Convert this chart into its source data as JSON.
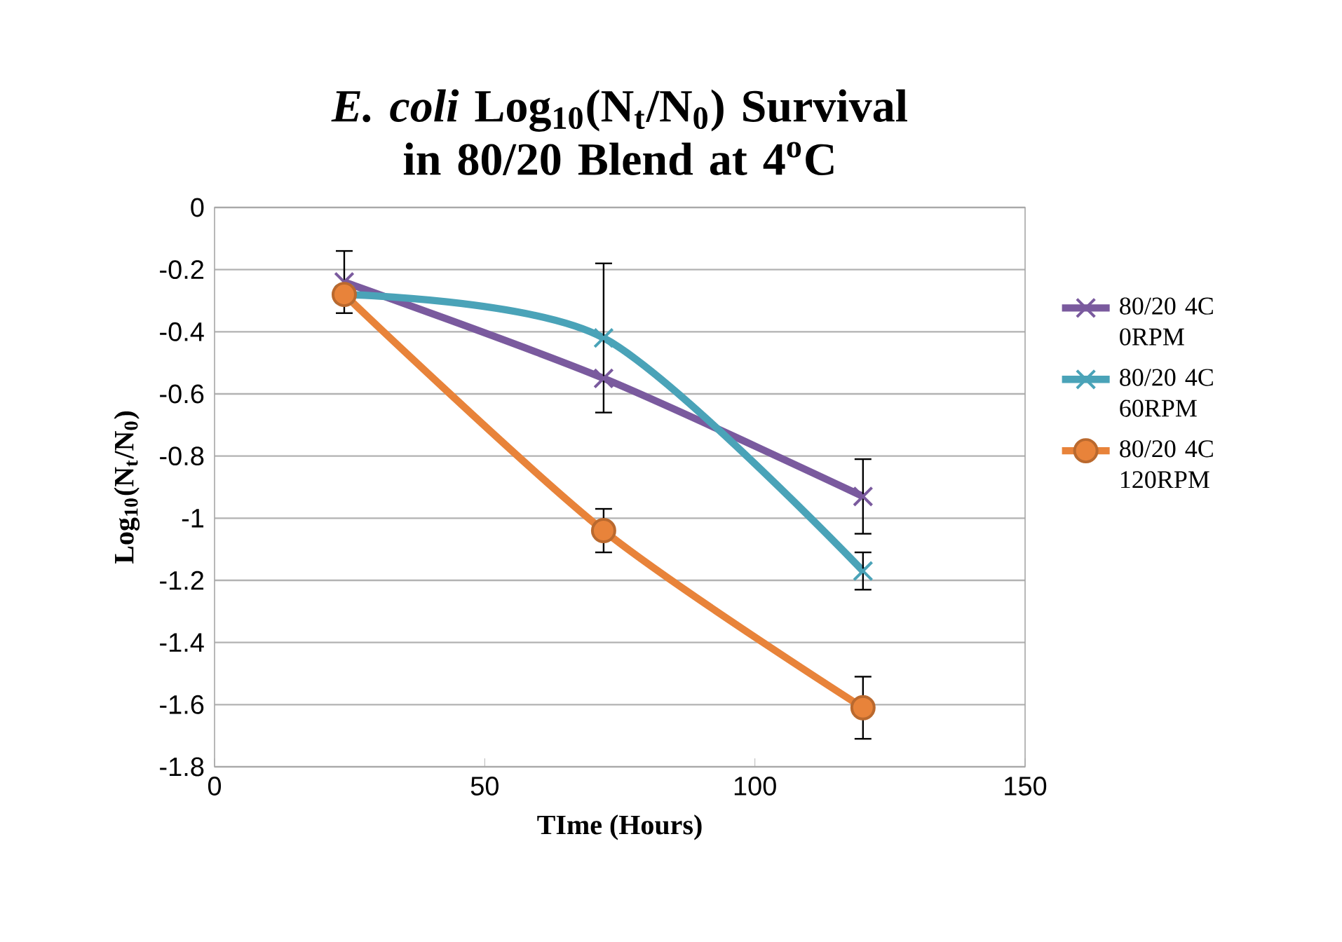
{
  "chart_data": {
    "type": "line",
    "title": "*E. coli* Log$_{10}$(N$_{t}$/N$_{0}$) Survival in 80/20 Blend at 4$^{o}$C",
    "xlabel": "TIme (Hours)",
    "ylabel": "Log$_{10}$(N$_{t}$/N$_{0}$)",
    "x": [
      24,
      72,
      120
    ],
    "series": [
      {
        "name": "80/20 4C 0RPM",
        "color": "#7a5a9e",
        "marker": "cross",
        "values": [
          -0.24,
          -0.55,
          -0.93
        ],
        "errors": [
          0.1,
          null,
          0.12
        ]
      },
      {
        "name": "80/20 4C 60RPM",
        "color": "#4aa3b8",
        "marker": "cross",
        "values": [
          -0.28,
          -0.42,
          -1.17
        ],
        "errors": [
          null,
          0.24,
          0.06
        ]
      },
      {
        "name": "80/20 4C 120RPM",
        "color": "#e8833a",
        "marker": "circle",
        "values": [
          -0.28,
          -1.04,
          -1.61
        ],
        "errors": [
          null,
          0.07,
          0.1
        ]
      }
    ],
    "xlim": [
      0,
      150
    ],
    "xticks": [
      0,
      50,
      100,
      150
    ],
    "ylim": [
      -1.8,
      0
    ],
    "yticks": [
      0,
      -0.2,
      -0.4,
      -0.6,
      -0.8,
      -1,
      -1.2,
      -1.4,
      -1.6,
      -1.8
    ],
    "grid": "y",
    "legend": "right",
    "line_style": "solid"
  }
}
